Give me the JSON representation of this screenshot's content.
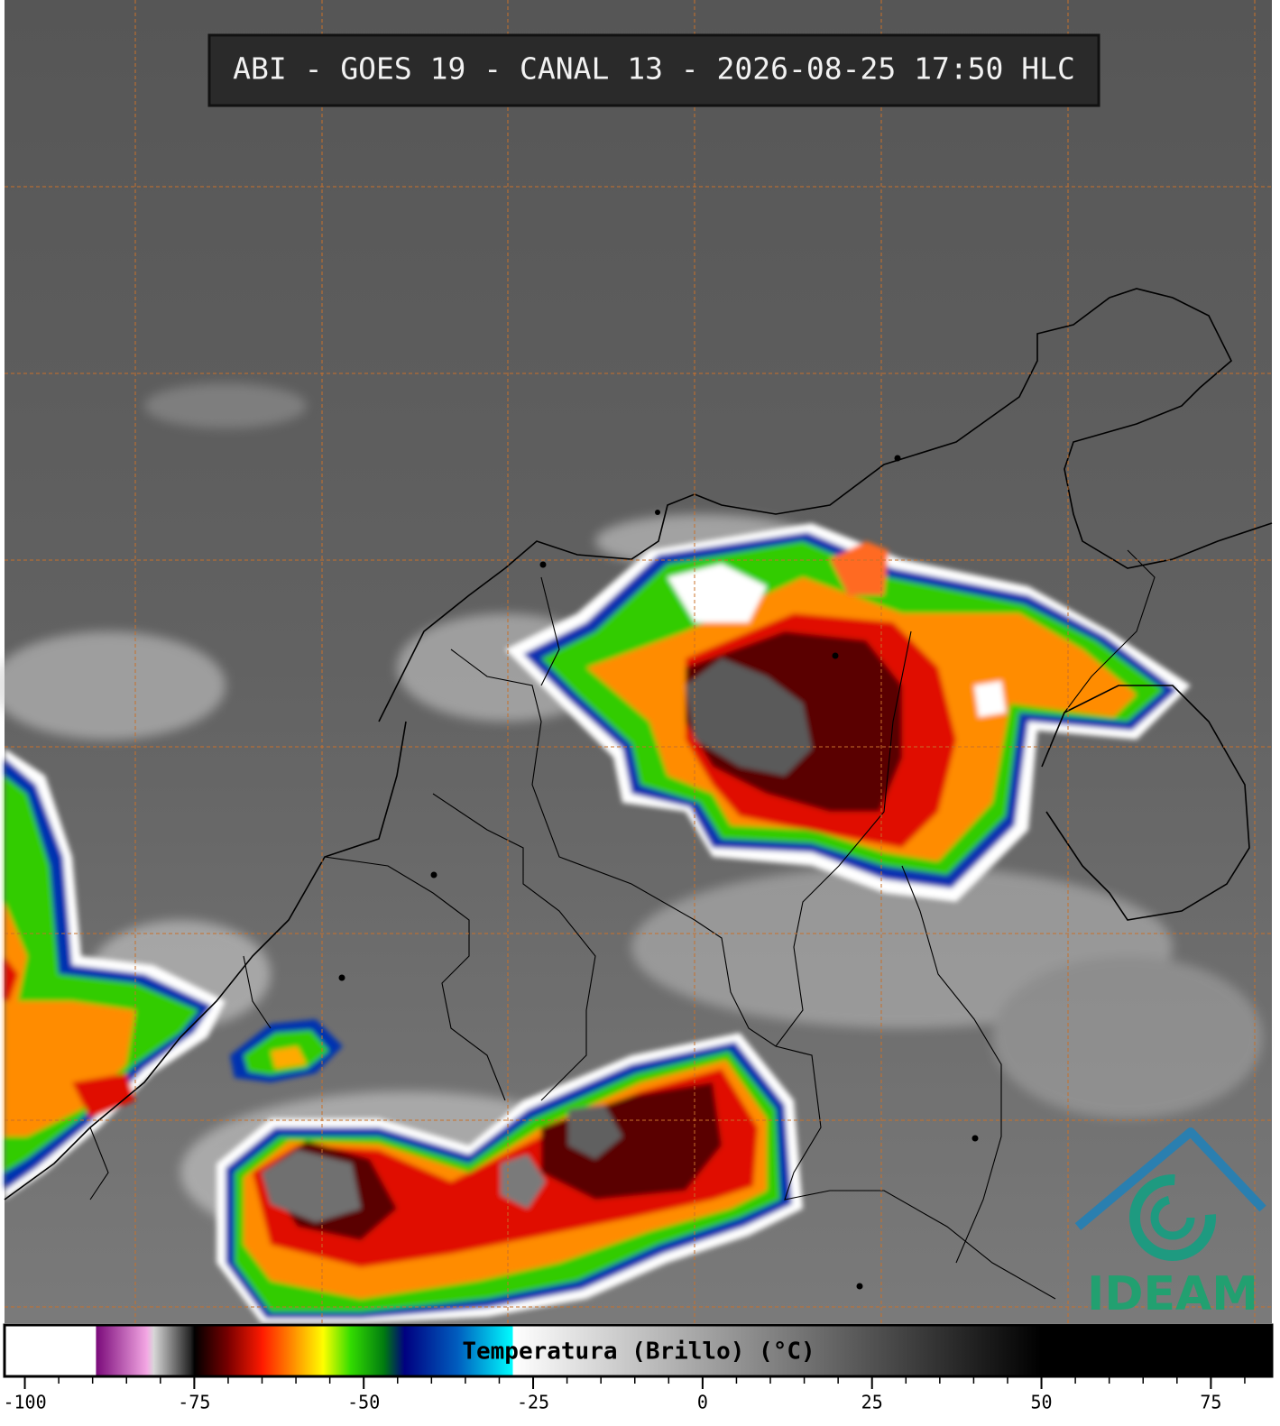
{
  "title": "ABI - GOES 19 - CANAL 13 - 2026-08-25 17:50 HLC",
  "colorbar": {
    "label": "Temperatura (Brillo) (°C)",
    "lim": [
      -103,
      84
    ],
    "ticks": [
      -100,
      -75,
      -50,
      -25,
      0,
      25,
      50,
      75
    ],
    "minor_ticks": [
      -100,
      -95,
      -90,
      -85,
      -80,
      -75,
      -70,
      -65,
      -60,
      -55,
      -50,
      -45,
      -40,
      -35,
      -30,
      -25,
      -20,
      -15,
      -10,
      -5,
      0,
      5,
      10,
      15,
      20,
      25,
      30,
      35,
      40,
      45,
      50,
      55,
      60,
      65,
      70,
      75,
      80
    ],
    "stops": [
      {
        "value": -103,
        "color": "#ffffff"
      },
      {
        "value": -89.5,
        "color": "#ffffff"
      },
      {
        "value": -89.5,
        "color": "#7a0a7a"
      },
      {
        "value": -82,
        "color": "#f4a8e4"
      },
      {
        "value": -81,
        "color": "#d8d8d8"
      },
      {
        "value": -75.5,
        "color": "#202020"
      },
      {
        "value": -75,
        "color": "#000000"
      },
      {
        "value": -70,
        "color": "#7a0000"
      },
      {
        "value": -65,
        "color": "#ff1a00"
      },
      {
        "value": -60,
        "color": "#ff9900"
      },
      {
        "value": -56,
        "color": "#ffff00"
      },
      {
        "value": -52,
        "color": "#33dd00"
      },
      {
        "value": -47,
        "color": "#007a10"
      },
      {
        "value": -44,
        "color": "#000080"
      },
      {
        "value": -36,
        "color": "#0060c0"
      },
      {
        "value": -28,
        "color": "#00ffff"
      },
      {
        "value": -28,
        "color": "#ffffff"
      },
      {
        "value": 50,
        "color": "#000000"
      },
      {
        "value": 84,
        "color": "#000000"
      }
    ]
  },
  "logo": "IDEAM"
}
